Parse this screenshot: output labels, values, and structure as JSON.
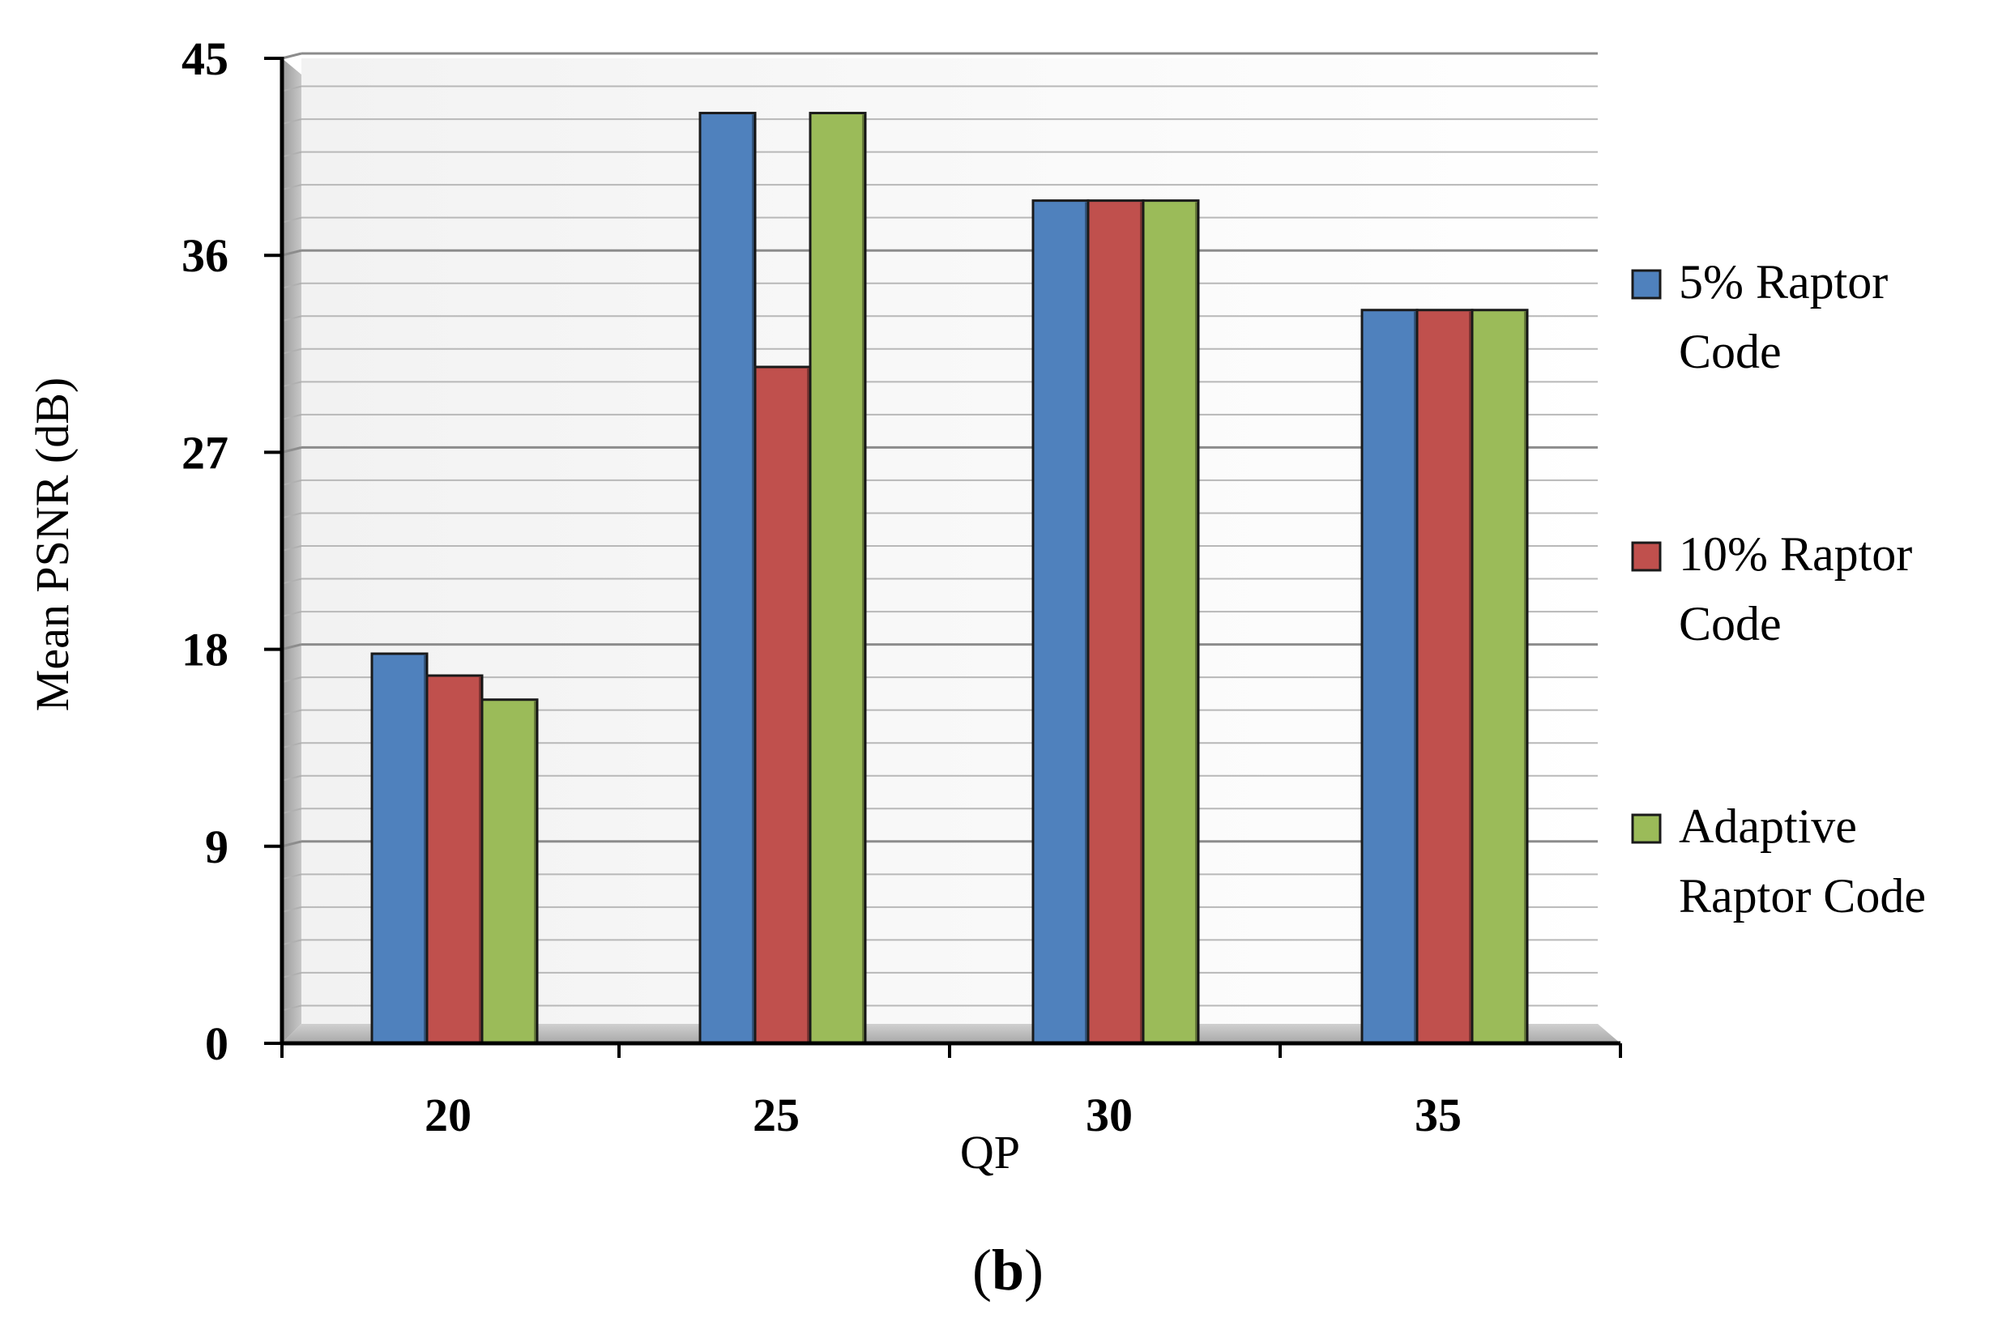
{
  "panel_label": {
    "open": "(",
    "letter": "b",
    "close": ")"
  },
  "chart_data": {
    "type": "bar",
    "title": "",
    "xlabel": "QP",
    "ylabel": "Mean PSNR (dB)",
    "categories": [
      "20",
      "25",
      "30",
      "35"
    ],
    "ylim": [
      0,
      45
    ],
    "yticks": [
      0,
      9,
      18,
      27,
      36,
      45
    ],
    "grid": true,
    "legend_position": "right",
    "series": [
      {
        "name": "5% Raptor Code",
        "legend_lines": [
          "5% Raptor",
          "Code"
        ],
        "color": "#4f81bd",
        "values": [
          17.8,
          42.5,
          38.5,
          33.5
        ]
      },
      {
        "name": "10%  Raptor Code",
        "legend_lines": [
          "10%  Raptor",
          "Code"
        ],
        "color": "#c0504d",
        "values": [
          16.8,
          30.9,
          38.5,
          33.5
        ]
      },
      {
        "name": "Adaptive Raptor Code",
        "legend_lines": [
          "Adaptive",
          "Raptor Code"
        ],
        "color": "#9bbb59",
        "values": [
          15.7,
          42.5,
          38.5,
          33.5
        ]
      }
    ]
  }
}
